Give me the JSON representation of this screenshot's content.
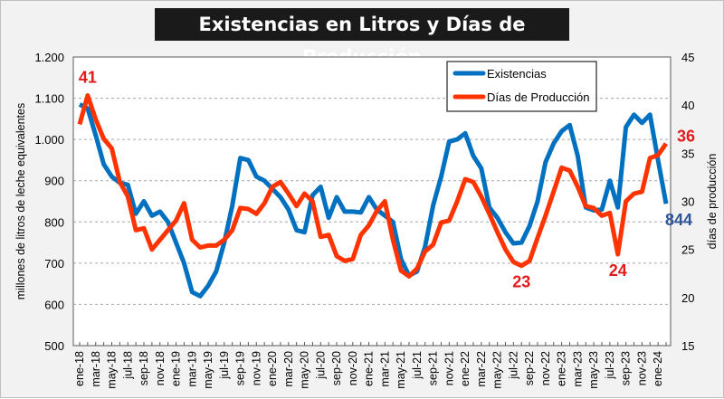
{
  "chart_data": {
    "type": "line",
    "title": "Existencias en Litros y Días de Producción",
    "ylabel": "millones de litros de leche equivalentes",
    "y2label": "días de producción",
    "ylim": [
      500,
      1200
    ],
    "y2lim": [
      15,
      45
    ],
    "yticks": [
      "500",
      "600",
      "700",
      "800",
      "900",
      "1.000",
      "1.100",
      "1.200"
    ],
    "y2ticks": [
      "15",
      "20",
      "25",
      "30",
      "35",
      "40",
      "45"
    ],
    "xtick_labels": [
      "ene-18",
      "mar-18",
      "may-18",
      "jul-18",
      "sep-18",
      "nov-18",
      "ene-19",
      "mar-19",
      "may-19",
      "jul-19",
      "sep-19",
      "nov-19",
      "ene-20",
      "mar-20",
      "may-20",
      "jul-20",
      "sep-20",
      "nov-20",
      "ene-21",
      "mar-21",
      "may-21",
      "jul-21",
      "sep-21",
      "nov-21",
      "ene-22",
      "mar-22",
      "may-22",
      "jul-22",
      "sep-22",
      "nov-22",
      "ene-23",
      "mar-23",
      "may-23",
      "jul-23",
      "sep-23",
      "nov-23",
      "ene-24"
    ],
    "x_start": "ene-18",
    "x_end": "feb-24",
    "grid": true,
    "legend_position": "top-right",
    "series": [
      {
        "name": "Existencias",
        "axis": "left",
        "color": "#0070c0",
        "values": [
          1085,
          1075,
          1010,
          940,
          910,
          895,
          890,
          820,
          850,
          815,
          825,
          800,
          750,
          700,
          630,
          620,
          645,
          680,
          750,
          840,
          955,
          950,
          910,
          900,
          880,
          860,
          830,
          780,
          775,
          865,
          885,
          810,
          860,
          825,
          825,
          823,
          860,
          830,
          815,
          800,
          710,
          670,
          680,
          740,
          840,
          910,
          995,
          1000,
          1015,
          960,
          930,
          835,
          810,
          775,
          748,
          750,
          790,
          850,
          945,
          990,
          1020,
          1035,
          960,
          835,
          828,
          830,
          900,
          835,
          1030,
          1060,
          1040,
          1060,
          950,
          844
        ]
      },
      {
        "name": "Días de Producción",
        "axis": "right",
        "color": "#ff3300",
        "values": [
          38,
          41,
          38.5,
          36.5,
          35.5,
          32,
          30.5,
          27,
          27.2,
          25,
          26,
          27,
          28,
          29.8,
          26,
          25.2,
          25.4,
          25.4,
          26,
          27,
          29.3,
          29.2,
          28.7,
          29.8,
          31.5,
          32,
          30.8,
          29.5,
          30.8,
          30,
          26.3,
          26.5,
          24.3,
          23.8,
          24,
          26.5,
          27.5,
          29,
          30,
          26,
          22.8,
          22.2,
          23,
          24.8,
          25.5,
          27.8,
          28,
          30,
          32.3,
          32,
          30.5,
          28.7,
          26.8,
          25,
          23.7,
          23.3,
          23.8,
          26.2,
          28.5,
          31,
          33.5,
          33.2,
          31.5,
          29.5,
          29.3,
          28.5,
          28.8,
          24.5,
          30,
          30.8,
          31,
          34.5,
          34.8,
          36
        ]
      }
    ],
    "annotations": [
      {
        "text": "41",
        "series": "Días de Producción",
        "index": 1,
        "color": "#e31a1c"
      },
      {
        "text": "23",
        "series": "Días de Producción",
        "index": 55,
        "color": "#e31a1c"
      },
      {
        "text": "24",
        "series": "Días de Producción",
        "index": 67,
        "color": "#e31a1c"
      },
      {
        "text": "36",
        "series": "Días de Producción",
        "index": 73,
        "color": "#e31a1c"
      },
      {
        "text": "844",
        "series": "Existencias",
        "index": 73,
        "color": "#2f5597"
      }
    ]
  }
}
